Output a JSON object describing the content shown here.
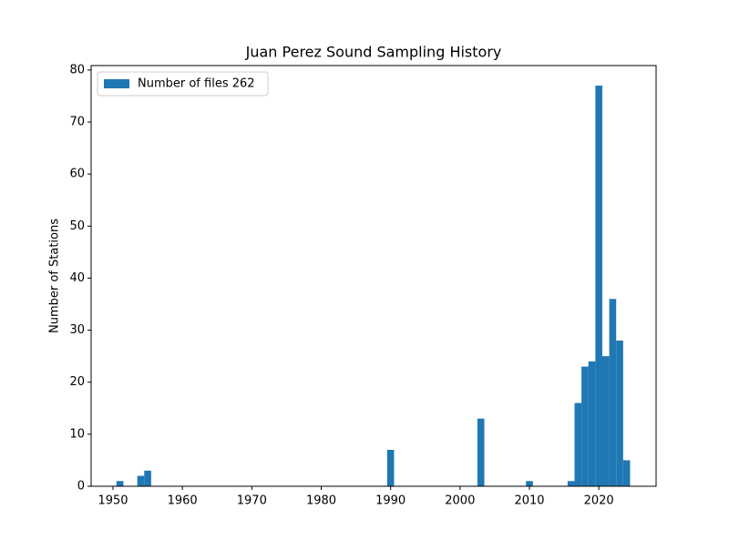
{
  "chart_data": {
    "type": "histogram",
    "title": "Juan Perez Sound Sampling History",
    "ylabel": "Number of Stations",
    "series": [
      {
        "name": "Number of files 262",
        "color": "#1f77b4",
        "values": [
          1,
          0,
          0,
          2,
          3,
          0,
          0,
          0,
          0,
          0,
          0,
          0,
          0,
          0,
          0,
          0,
          0,
          0,
          0,
          0,
          0,
          0,
          0,
          0,
          0,
          0,
          0,
          0,
          0,
          0,
          0,
          0,
          0,
          0,
          0,
          0,
          0,
          0,
          0,
          7,
          0,
          0,
          0,
          0,
          0,
          0,
          0,
          0,
          0,
          0,
          0,
          0,
          13,
          0,
          0,
          0,
          0,
          0,
          0,
          1,
          0,
          0,
          0,
          0,
          0,
          1,
          16,
          23,
          24,
          77,
          25,
          36,
          28,
          5
        ]
      }
    ],
    "bins": [
      1950.5,
      1951.5,
      1952.5,
      1953.5,
      1954.5,
      1955.5,
      1956.5,
      1957.5,
      1958.5,
      1959.5,
      1960.5,
      1961.5,
      1962.5,
      1963.5,
      1964.5,
      1965.5,
      1966.5,
      1967.5,
      1968.5,
      1969.5,
      1970.5,
      1971.5,
      1972.5,
      1973.5,
      1974.5,
      1975.5,
      1976.5,
      1977.5,
      1978.5,
      1979.5,
      1980.5,
      1981.5,
      1982.5,
      1983.5,
      1984.5,
      1985.5,
      1986.5,
      1987.5,
      1988.5,
      1989.5,
      1990.5,
      1991.5,
      1992.5,
      1993.5,
      1994.5,
      1995.5,
      1996.5,
      1997.5,
      1998.5,
      1999.5,
      2000.5,
      2001.5,
      2002.5,
      2003.5,
      2004.5,
      2005.5,
      2006.5,
      2007.5,
      2008.5,
      2009.5,
      2010.5,
      2011.5,
      2012.5,
      2013.5,
      2014.5,
      2015.5,
      2016.5,
      2017.5,
      2018.5,
      2019.5,
      2020.5,
      2021.5,
      2022.5,
      2023.5,
      2024.5
    ],
    "xlim": [
      1946.85,
      2028.25
    ],
    "xticks": [
      1950,
      1960,
      1970,
      1980,
      1990,
      2000,
      2010,
      2020
    ],
    "ylim": [
      0,
      80.85
    ],
    "yticks": [
      0,
      10,
      20,
      30,
      40,
      50,
      60,
      70,
      80
    ],
    "legend": "upper left"
  }
}
